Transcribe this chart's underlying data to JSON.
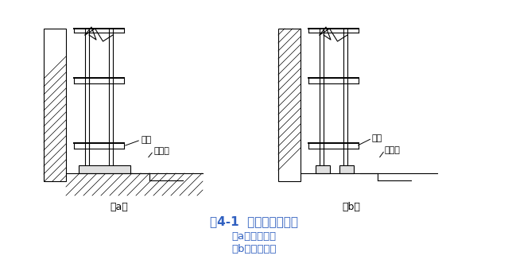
{
  "title": "图4-1  普通脚手架基底",
  "subtitle_a": "（a）横铺垫板",
  "subtitle_b": "（b）顺铺垫板",
  "label_a": "（a）",
  "label_b": "（b）",
  "label_dianmu": "垫木",
  "label_paishuigou": "排水沟",
  "title_color": "#3060c0",
  "subtitle_color": "#3060c0",
  "bg_color": "#ffffff",
  "lc": "#000000",
  "fig_w": 6.39,
  "fig_h": 3.46,
  "dpi": 100
}
